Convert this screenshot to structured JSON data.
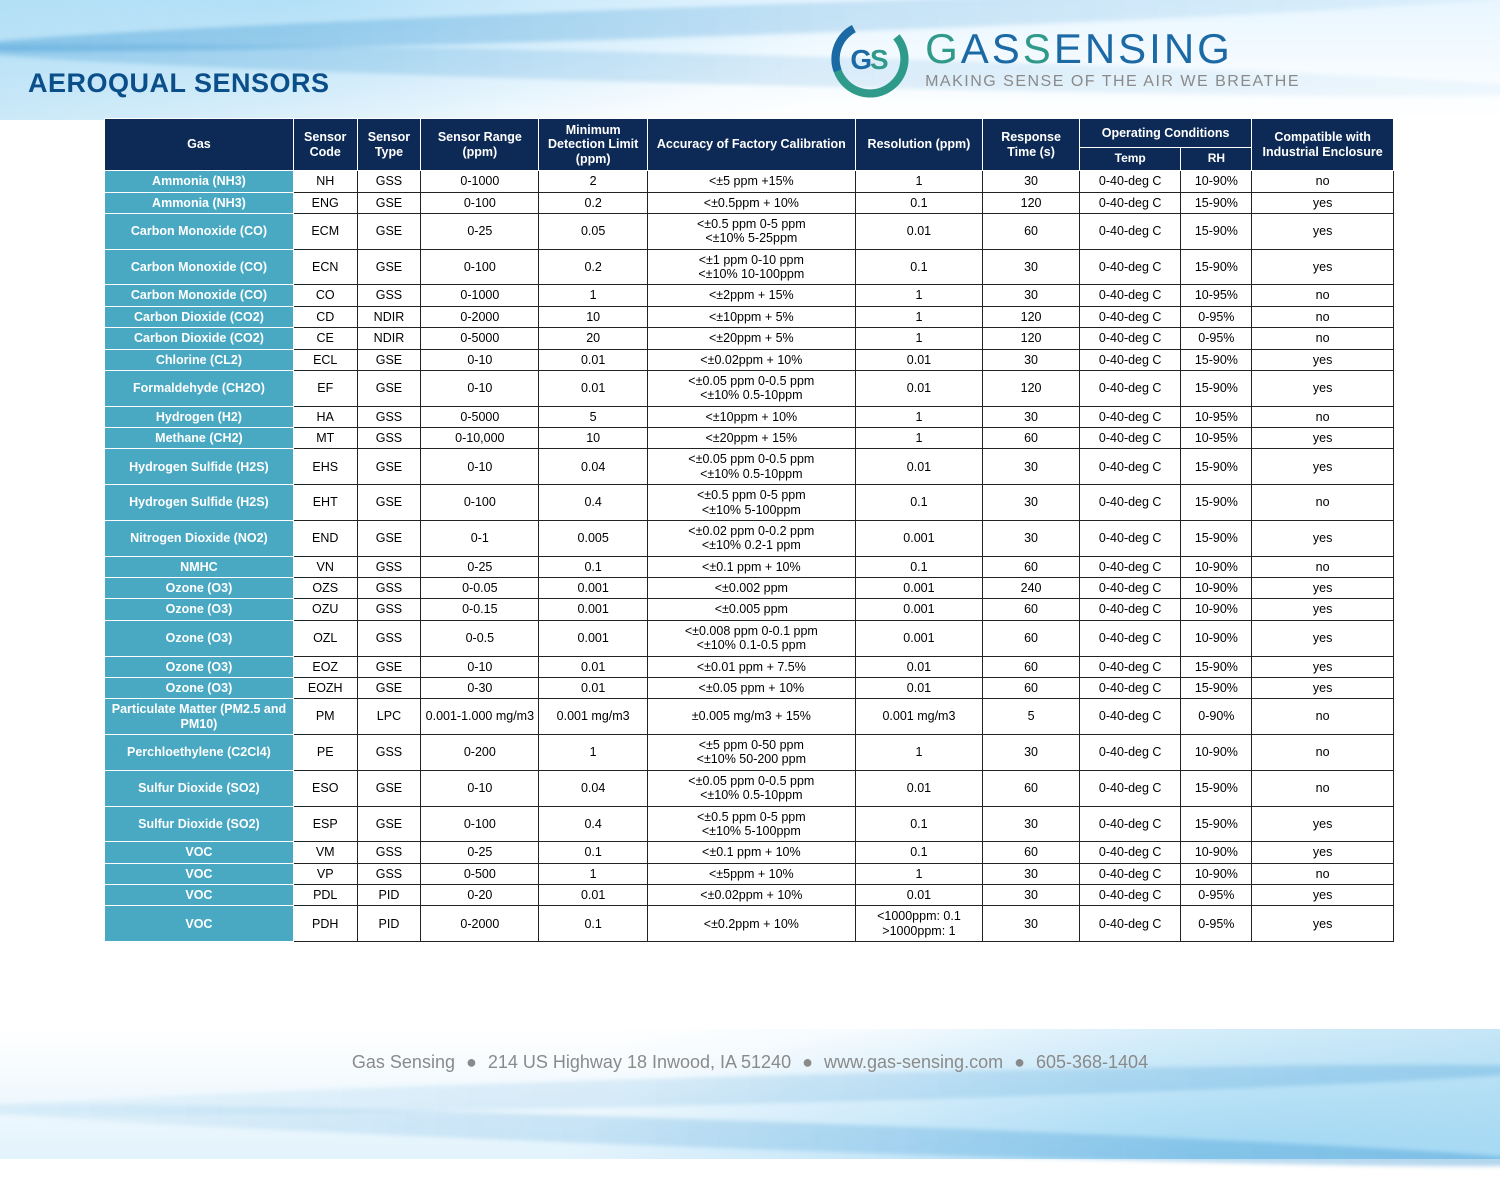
{
  "title": "AEROQUAL SENSORS",
  "logo": {
    "name_a": "G",
    "name_b": "AS",
    "name_c": "S",
    "name_d": "ENSING",
    "tagline": "MAKING SENSE OF THE AIR WE BREATHE"
  },
  "footer": {
    "company": "Gas Sensing",
    "address": "214 US Highway 18 Inwood, IA 51240",
    "site": "www.gas-sensing.com",
    "phone": "605-368-1404"
  },
  "colors": {
    "header_bg": "#0d2a56",
    "gas_bg": "#4aa9c2",
    "title": "#0b4f8a",
    "footer": "#8a8a8a"
  },
  "columns": {
    "gas": "Gas",
    "code": "Sensor Code",
    "type": "Sensor Type",
    "range": "Sensor Range (ppm)",
    "mdl": "Minimum Detection Limit (ppm)",
    "accuracy": "Accuracy of Factory Calibration",
    "resolution": "Resolution (ppm)",
    "response": "Response Time (s)",
    "opcond": "Operating Conditions",
    "opcond_temp": "Temp",
    "opcond_rh": "RH",
    "enclosure": "Compatible with Industrial Enclosure"
  },
  "rows": [
    {
      "gas": "Ammonia (NH3)",
      "code": "NH",
      "type": "GSS",
      "range": "0-1000",
      "mdl": "2",
      "accuracy": "<±5 ppm +15%",
      "resolution": "1",
      "response": "30",
      "temp": "0-40-deg C",
      "rh": "10-90%",
      "enc": "no"
    },
    {
      "gas": "Ammonia (NH3)",
      "code": "ENG",
      "type": "GSE",
      "range": "0-100",
      "mdl": "0.2",
      "accuracy": "<±0.5ppm + 10%",
      "resolution": "0.1",
      "response": "120",
      "temp": "0-40-deg C",
      "rh": "15-90%",
      "enc": "yes"
    },
    {
      "gas": "Carbon Monoxide (CO)",
      "code": "ECM",
      "type": "GSE",
      "range": "0-25",
      "mdl": "0.05",
      "accuracy": "<±0.5 ppm 0-5 ppm\n<±10% 5-25ppm",
      "resolution": "0.01",
      "response": "60",
      "temp": "0-40-deg C",
      "rh": "15-90%",
      "enc": "yes"
    },
    {
      "gas": "Carbon Monoxide (CO)",
      "code": "ECN",
      "type": "GSE",
      "range": "0-100",
      "mdl": "0.2",
      "accuracy": "<±1 ppm 0-10 ppm\n<±10% 10-100ppm",
      "resolution": "0.1",
      "response": "30",
      "temp": "0-40-deg C",
      "rh": "15-90%",
      "enc": "yes"
    },
    {
      "gas": "Carbon Monoxide (CO)",
      "code": "CO",
      "type": "GSS",
      "range": "0-1000",
      "mdl": "1",
      "accuracy": "<±2ppm + 15%",
      "resolution": "1",
      "response": "30",
      "temp": "0-40-deg C",
      "rh": "10-95%",
      "enc": "no"
    },
    {
      "gas": "Carbon Dioxide (CO2)",
      "code": "CD",
      "type": "NDIR",
      "range": "0-2000",
      "mdl": "10",
      "accuracy": "<±10ppm + 5%",
      "resolution": "1",
      "response": "120",
      "temp": "0-40-deg C",
      "rh": "0-95%",
      "enc": "no"
    },
    {
      "gas": "Carbon Dioxide (CO2)",
      "code": "CE",
      "type": "NDIR",
      "range": "0-5000",
      "mdl": "20",
      "accuracy": "<±20ppm + 5%",
      "resolution": "1",
      "response": "120",
      "temp": "0-40-deg C",
      "rh": "0-95%",
      "enc": "no"
    },
    {
      "gas": "Chlorine (CL2)",
      "code": "ECL",
      "type": "GSE",
      "range": "0-10",
      "mdl": "0.01",
      "accuracy": "<±0.02ppm + 10%",
      "resolution": "0.01",
      "response": "30",
      "temp": "0-40-deg C",
      "rh": "15-90%",
      "enc": "yes"
    },
    {
      "gas": "Formaldehyde (CH2O)",
      "code": "EF",
      "type": "GSE",
      "range": "0-10",
      "mdl": "0.01",
      "accuracy": "<±0.05 ppm 0-0.5 ppm\n<±10% 0.5-10ppm",
      "resolution": "0.01",
      "response": "120",
      "temp": "0-40-deg C",
      "rh": "15-90%",
      "enc": "yes"
    },
    {
      "gas": "Hydrogen (H2)",
      "code": "HA",
      "type": "GSS",
      "range": "0-5000",
      "mdl": "5",
      "accuracy": "<±10ppm + 10%",
      "resolution": "1",
      "response": "30",
      "temp": "0-40-deg C",
      "rh": "10-95%",
      "enc": "no"
    },
    {
      "gas": "Methane (CH2)",
      "code": "MT",
      "type": "GSS",
      "range": "0-10,000",
      "mdl": "10",
      "accuracy": "<±20ppm + 15%",
      "resolution": "1",
      "response": "60",
      "temp": "0-40-deg C",
      "rh": "10-95%",
      "enc": "yes"
    },
    {
      "gas": "Hydrogen Sulfide (H2S)",
      "code": "EHS",
      "type": "GSE",
      "range": "0-10",
      "mdl": "0.04",
      "accuracy": "<±0.05 ppm 0-0.5 ppm\n<±10% 0.5-10ppm",
      "resolution": "0.01",
      "response": "30",
      "temp": "0-40-deg C",
      "rh": "15-90%",
      "enc": "yes"
    },
    {
      "gas": "Hydrogen Sulfide (H2S)",
      "code": "EHT",
      "type": "GSE",
      "range": "0-100",
      "mdl": "0.4",
      "accuracy": "<±0.5 ppm 0-5 ppm\n<±10% 5-100ppm",
      "resolution": "0.1",
      "response": "30",
      "temp": "0-40-deg C",
      "rh": "15-90%",
      "enc": "no"
    },
    {
      "gas": "Nitrogen Dioxide (NO2)",
      "code": "END",
      "type": "GSE",
      "range": "0-1",
      "mdl": "0.005",
      "accuracy": "<±0.02 ppm 0-0.2 ppm\n<±10% 0.2-1 ppm",
      "resolution": "0.001",
      "response": "30",
      "temp": "0-40-deg C",
      "rh": "15-90%",
      "enc": "yes"
    },
    {
      "gas": "NMHC",
      "code": "VN",
      "type": "GSS",
      "range": "0-25",
      "mdl": "0.1",
      "accuracy": "<±0.1 ppm + 10%",
      "resolution": "0.1",
      "response": "60",
      "temp": "0-40-deg C",
      "rh": "10-90%",
      "enc": "no"
    },
    {
      "gas": "Ozone (O3)",
      "code": "OZS",
      "type": "GSS",
      "range": "0-0.05",
      "mdl": "0.001",
      "accuracy": "<±0.002 ppm",
      "resolution": "0.001",
      "response": "240",
      "temp": "0-40-deg C",
      "rh": "10-90%",
      "enc": "yes"
    },
    {
      "gas": "Ozone (O3)",
      "code": "OZU",
      "type": "GSS",
      "range": "0-0.15",
      "mdl": "0.001",
      "accuracy": "<±0.005 ppm",
      "resolution": "0.001",
      "response": "60",
      "temp": "0-40-deg C",
      "rh": "10-90%",
      "enc": "yes"
    },
    {
      "gas": "Ozone (O3)",
      "code": "OZL",
      "type": "GSS",
      "range": "0-0.5",
      "mdl": "0.001",
      "accuracy": "<±0.008 ppm 0-0.1 ppm\n<±10% 0.1-0.5 ppm",
      "resolution": "0.001",
      "response": "60",
      "temp": "0-40-deg C",
      "rh": "10-90%",
      "enc": "yes"
    },
    {
      "gas": "Ozone (O3)",
      "code": "EOZ",
      "type": "GSE",
      "range": "0-10",
      "mdl": "0.01",
      "accuracy": "<±0.01 ppm + 7.5%",
      "resolution": "0.01",
      "response": "60",
      "temp": "0-40-deg C",
      "rh": "15-90%",
      "enc": "yes"
    },
    {
      "gas": "Ozone (O3)",
      "code": "EOZH",
      "type": "GSE",
      "range": "0-30",
      "mdl": "0.01",
      "accuracy": "<±0.05 ppm + 10%",
      "resolution": "0.01",
      "response": "60",
      "temp": "0-40-deg C",
      "rh": "15-90%",
      "enc": "yes"
    },
    {
      "gas": "Particulate Matter (PM2.5 and PM10)",
      "code": "PM",
      "type": "LPC",
      "range": "0.001-1.000 mg/m3",
      "mdl": "0.001 mg/m3",
      "accuracy": "±0.005 mg/m3 + 15%",
      "resolution": "0.001 mg/m3",
      "response": "5",
      "temp": "0-40-deg C",
      "rh": "0-90%",
      "enc": "no"
    },
    {
      "gas": "Perchloethylene (C2Cl4)",
      "code": "PE",
      "type": "GSS",
      "range": "0-200",
      "mdl": "1",
      "accuracy": "<±5 ppm 0-50 ppm\n<±10% 50-200 ppm",
      "resolution": "1",
      "response": "30",
      "temp": "0-40-deg C",
      "rh": "10-90%",
      "enc": "no"
    },
    {
      "gas": "Sulfur Dioxide (SO2)",
      "code": "ESO",
      "type": "GSE",
      "range": "0-10",
      "mdl": "0.04",
      "accuracy": "<±0.05 ppm 0-0.5 ppm\n<±10% 0.5-10ppm",
      "resolution": "0.01",
      "response": "60",
      "temp": "0-40-deg C",
      "rh": "15-90%",
      "enc": "no"
    },
    {
      "gas": "Sulfur Dioxide (SO2)",
      "code": "ESP",
      "type": "GSE",
      "range": "0-100",
      "mdl": "0.4",
      "accuracy": "<±0.5 ppm 0-5 ppm\n<±10% 5-100ppm",
      "resolution": "0.1",
      "response": "30",
      "temp": "0-40-deg C",
      "rh": "15-90%",
      "enc": "yes"
    },
    {
      "gas": "VOC",
      "code": "VM",
      "type": "GSS",
      "range": "0-25",
      "mdl": "0.1",
      "accuracy": "<±0.1 ppm + 10%",
      "resolution": "0.1",
      "response": "60",
      "temp": "0-40-deg C",
      "rh": "10-90%",
      "enc": "yes"
    },
    {
      "gas": "VOC",
      "code": "VP",
      "type": "GSS",
      "range": "0-500",
      "mdl": "1",
      "accuracy": "<±5ppm + 10%",
      "resolution": "1",
      "response": "30",
      "temp": "0-40-deg C",
      "rh": "10-90%",
      "enc": "no"
    },
    {
      "gas": "VOC",
      "code": "PDL",
      "type": "PID",
      "range": "0-20",
      "mdl": "0.01",
      "accuracy": "<±0.02ppm + 10%",
      "resolution": "0.01",
      "response": "30",
      "temp": "0-40-deg C",
      "rh": "0-95%",
      "enc": "yes"
    },
    {
      "gas": "VOC",
      "code": "PDH",
      "type": "PID",
      "range": "0-2000",
      "mdl": "0.1",
      "accuracy": "<±0.2ppm + 10%",
      "resolution": "<1000ppm: 0.1\n>1000ppm: 1",
      "response": "30",
      "temp": "0-40-deg C",
      "rh": "0-95%",
      "enc": "yes"
    }
  ]
}
